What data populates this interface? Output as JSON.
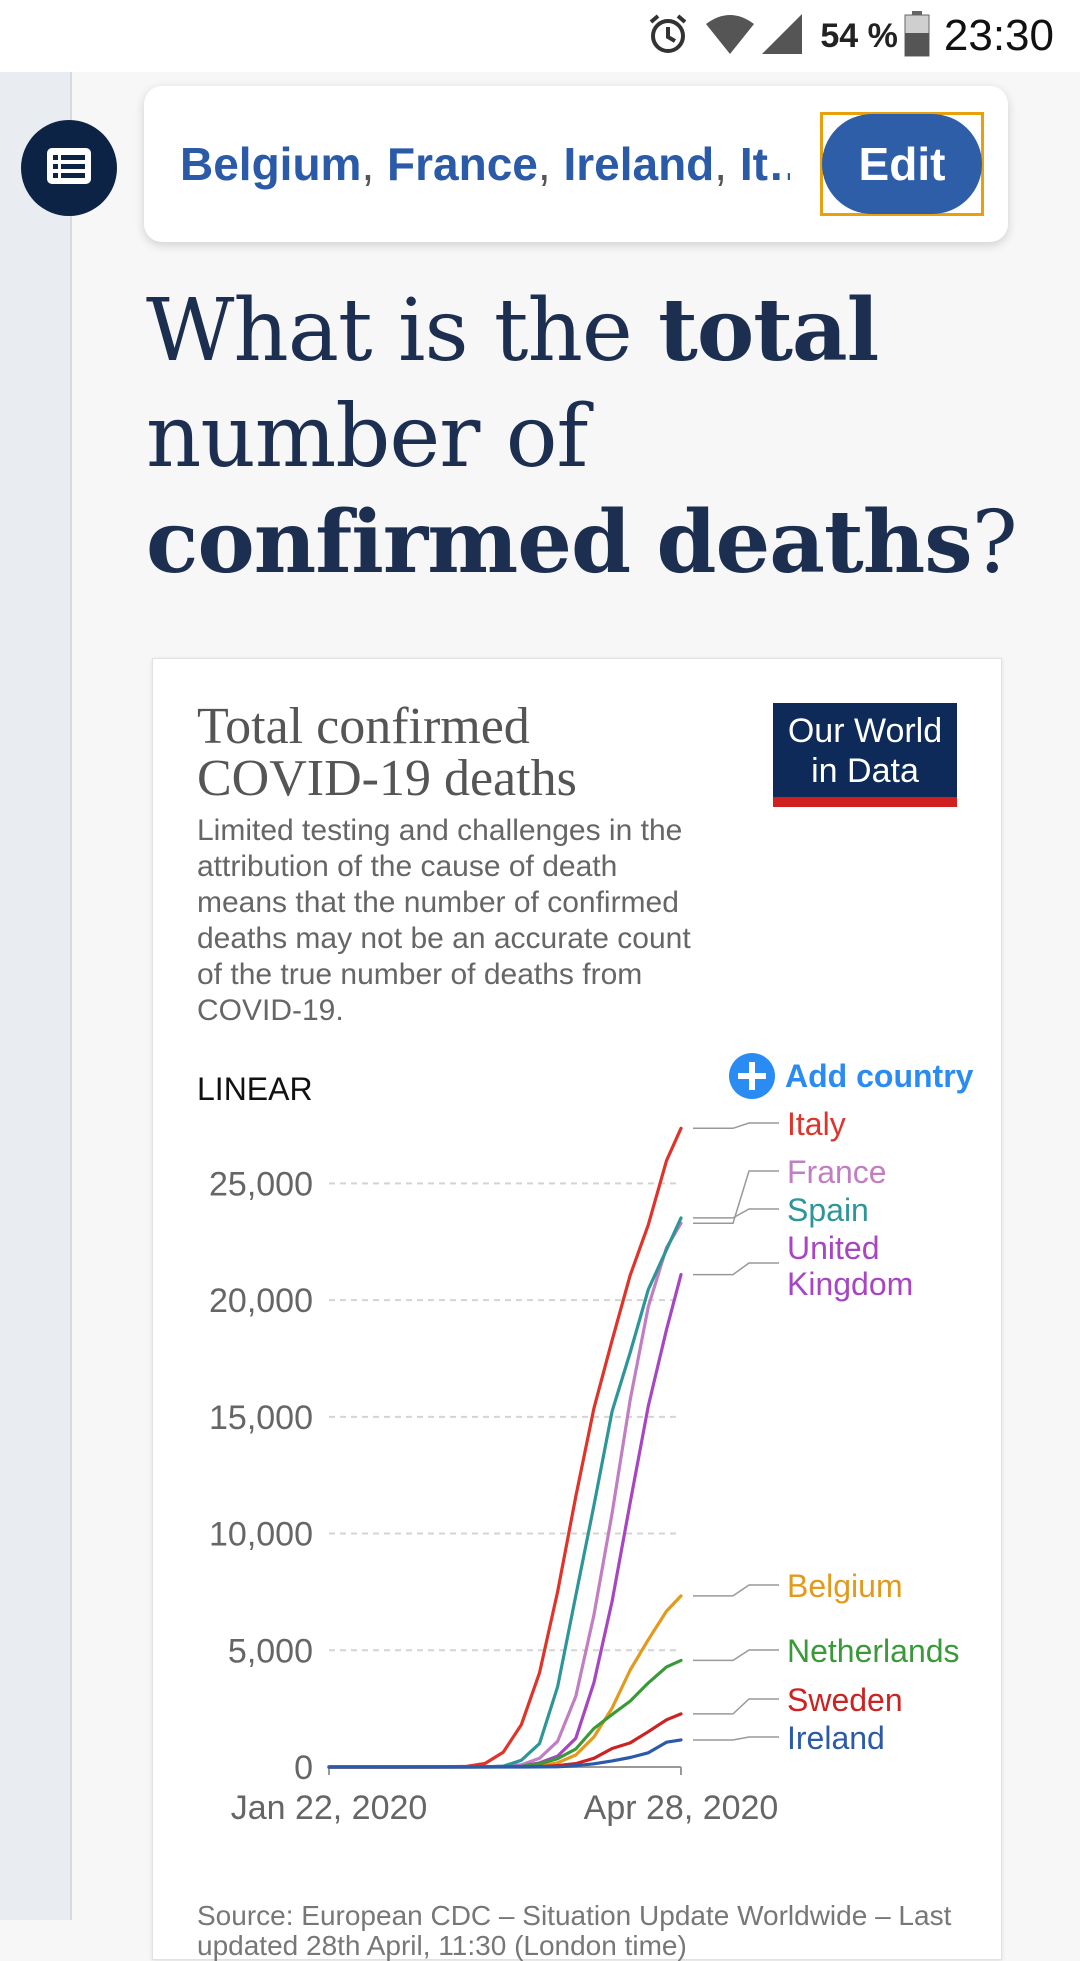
{
  "status_bar": {
    "battery": "54 %",
    "time": "23:30",
    "icons": [
      "alarm-icon",
      "wifi-icon",
      "signal-icon",
      "battery-icon"
    ]
  },
  "toc_button": {
    "icon": "list-icon"
  },
  "selector": {
    "countries": [
      "Belgium",
      "France",
      "Ireland",
      "It…"
    ],
    "separator": ",",
    "edit_label": "Edit"
  },
  "question": {
    "part1": "What is the ",
    "bold1": "total",
    "part2": " number of ",
    "bold2": "confirmed",
    "part3": " ",
    "bold3": "deaths",
    "part4": "?"
  },
  "chart_data": {
    "type": "line",
    "title": "Total confirmed COVID-19 deaths",
    "subtitle": "Limited testing and challenges in the attribution of the cause of death means that the number of confirmed deaths may not be an accurate count of the true number of deaths from COVID-19.",
    "logo": [
      "Our World",
      "in Data"
    ],
    "scale_label": "LINEAR",
    "add_country_label": "Add country",
    "x_range": [
      "2020-01-22",
      "2020-04-28"
    ],
    "x_tick_labels": [
      "Jan 22, 2020",
      "Apr 28, 2020"
    ],
    "y_ticks": [
      0,
      5000,
      10000,
      15000,
      20000,
      25000
    ],
    "y_tick_labels": [
      "0",
      "5,000",
      "10,000",
      "15,000",
      "20,000",
      "25,000"
    ],
    "ylim": [
      0,
      27500
    ],
    "grid": "horizontal dashed",
    "legend": "right, line-end labels",
    "series": [
      {
        "name": "Italy",
        "color": "#e0332a",
        "x": [
          "2020-01-22",
          "2020-02-21",
          "2020-02-29",
          "2020-03-05",
          "2020-03-10",
          "2020-03-15",
          "2020-03-20",
          "2020-03-25",
          "2020-03-30",
          "2020-04-04",
          "2020-04-09",
          "2020-04-14",
          "2020-04-19",
          "2020-04-24",
          "2020-04-28"
        ],
        "y": [
          0,
          1,
          29,
          148,
          631,
          1809,
          4032,
          7503,
          11591,
          15362,
          18279,
          21067,
          23227,
          25969,
          27359
        ]
      },
      {
        "name": "France",
        "color": "#c17ec2",
        "x": [
          "2020-01-22",
          "2020-02-29",
          "2020-03-05",
          "2020-03-10",
          "2020-03-15",
          "2020-03-20",
          "2020-03-25",
          "2020-03-30",
          "2020-04-04",
          "2020-04-09",
          "2020-04-14",
          "2020-04-19",
          "2020-04-24",
          "2020-04-28"
        ],
        "y": [
          0,
          2,
          4,
          33,
          91,
          372,
          1100,
          3024,
          6507,
          10869,
          15729,
          19718,
          22245,
          23293
        ]
      },
      {
        "name": "Spain",
        "color": "#2e9598",
        "x": [
          "2020-01-22",
          "2020-03-05",
          "2020-03-10",
          "2020-03-15",
          "2020-03-20",
          "2020-03-25",
          "2020-03-30",
          "2020-04-04",
          "2020-04-09",
          "2020-04-14",
          "2020-04-19",
          "2020-04-24",
          "2020-04-28"
        ],
        "y": [
          0,
          3,
          35,
          288,
          1002,
          3434,
          7340,
          11198,
          15238,
          17756,
          20453,
          22157,
          23521
        ]
      },
      {
        "name": "United Kingdom",
        "color": "#a845c2",
        "x": [
          "2020-01-22",
          "2020-03-10",
          "2020-03-15",
          "2020-03-20",
          "2020-03-25",
          "2020-03-30",
          "2020-04-04",
          "2020-04-09",
          "2020-04-14",
          "2020-04-19",
          "2020-04-24",
          "2020-04-28"
        ],
        "y": [
          0,
          6,
          35,
          177,
          465,
          1228,
          3605,
          7097,
          11329,
          15464,
          18738,
          21092
        ]
      },
      {
        "name": "Belgium",
        "color": "#e39a1c",
        "x": [
          "2020-01-22",
          "2020-03-15",
          "2020-03-20",
          "2020-03-25",
          "2020-03-30",
          "2020-04-04",
          "2020-04-09",
          "2020-04-14",
          "2020-04-19",
          "2020-04-24",
          "2020-04-28"
        ],
        "y": [
          0,
          4,
          37,
          178,
          513,
          1283,
          2523,
          4157,
          5453,
          6679,
          7331
        ]
      },
      {
        "name": "Netherlands",
        "color": "#3a9a3a",
        "x": [
          "2020-01-22",
          "2020-03-10",
          "2020-03-15",
          "2020-03-20",
          "2020-03-25",
          "2020-03-30",
          "2020-04-04",
          "2020-04-09",
          "2020-04-14",
          "2020-04-19",
          "2020-04-24",
          "2020-04-28"
        ],
        "y": [
          0,
          4,
          20,
          136,
          356,
          771,
          1651,
          2248,
          2823,
          3601,
          4289,
          4566
        ]
      },
      {
        "name": "Sweden",
        "color": "#cc2222",
        "x": [
          "2020-01-22",
          "2020-03-15",
          "2020-03-20",
          "2020-03-25",
          "2020-03-30",
          "2020-04-04",
          "2020-04-09",
          "2020-04-14",
          "2020-04-19",
          "2020-04-24",
          "2020-04-28"
        ],
        "y": [
          0,
          3,
          16,
          62,
          146,
          373,
          793,
          1033,
          1511,
          2021,
          2274
        ]
      },
      {
        "name": "Ireland",
        "color": "#2a5aa8",
        "x": [
          "2020-01-22",
          "2020-03-15",
          "2020-03-20",
          "2020-03-25",
          "2020-03-30",
          "2020-04-04",
          "2020-04-09",
          "2020-04-14",
          "2020-04-19",
          "2020-04-24",
          "2020-04-28"
        ],
        "y": [
          0,
          2,
          3,
          9,
          54,
          137,
          263,
          406,
          610,
          1063,
          1159
        ]
      }
    ],
    "source": "Source: European CDC – Situation Update Worldwide – Last updated 28th April, 11:30 (London time)"
  }
}
